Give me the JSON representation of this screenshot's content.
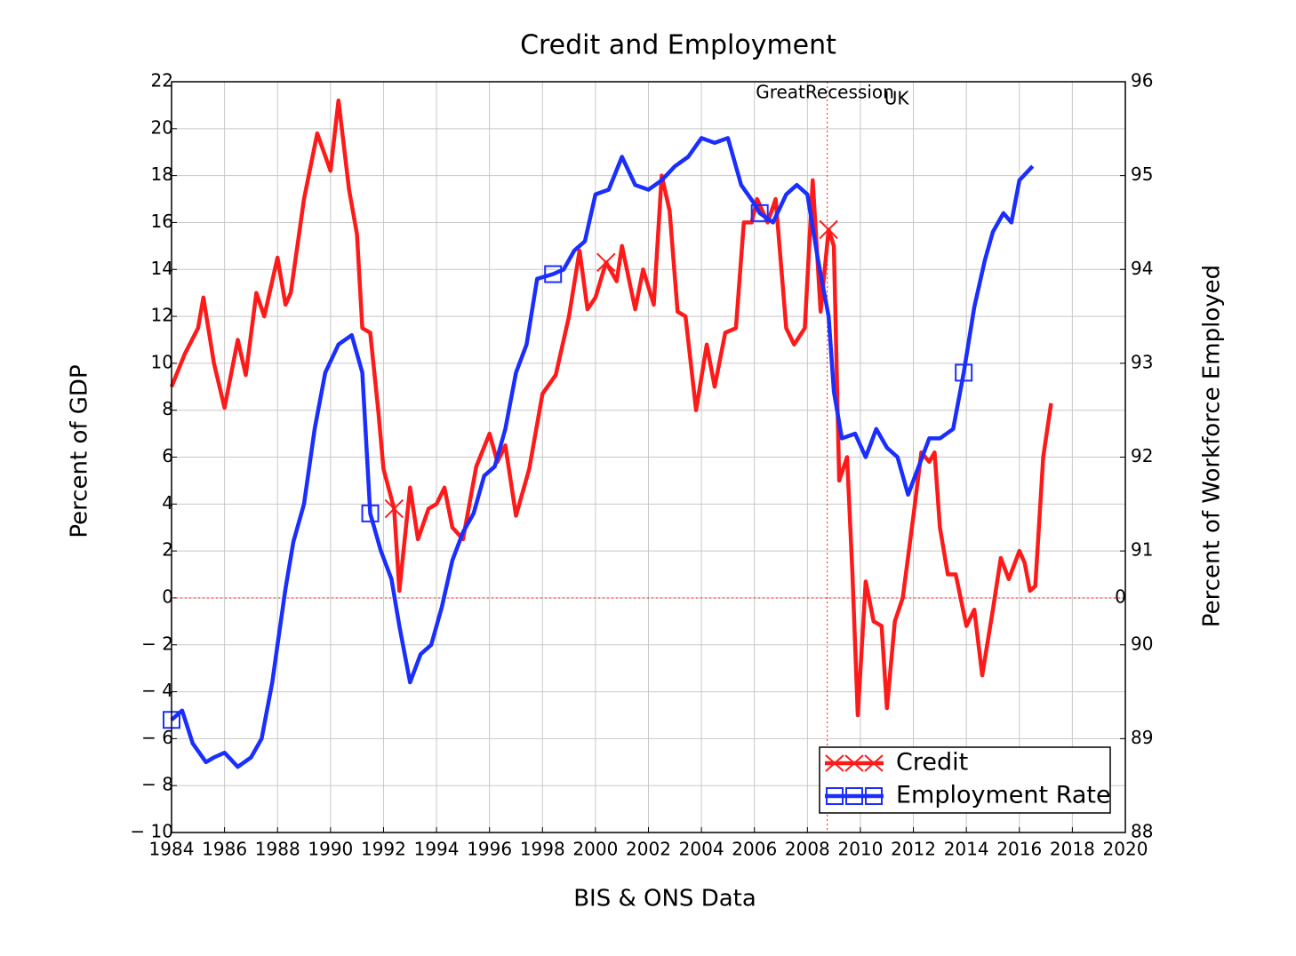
{
  "chart_data": {
    "type": "line",
    "title": "Credit and Employment",
    "xlabel": "BIS & ONS Data",
    "ylabel": "Percent of GDP",
    "y2label": "Percent of Workforce Employed",
    "xlim": [
      1984,
      2020
    ],
    "xticks": [
      1984,
      1986,
      1988,
      1990,
      1992,
      1994,
      1996,
      1998,
      2000,
      2002,
      2004,
      2006,
      2008,
      2010,
      2012,
      2014,
      2016,
      2018,
      2020
    ],
    "ylim": [
      -10,
      22
    ],
    "yticks": [
      {
        "value": -10,
        "label": "− 10"
      },
      {
        "value": -8,
        "label": "− 8"
      },
      {
        "value": -6,
        "label": "− 6"
      },
      {
        "value": -4,
        "label": "− 4"
      },
      {
        "value": -2,
        "label": "− 2"
      },
      0,
      2,
      4,
      6,
      8,
      10,
      12,
      14,
      16,
      18,
      20,
      22
    ],
    "y2lim": [
      88,
      96
    ],
    "y2ticks": [
      88,
      89,
      90,
      91,
      92,
      93,
      94,
      95,
      96
    ],
    "grid": true,
    "legend": "lower right",
    "hlines": [
      0
    ],
    "vlines": [
      2008.75
    ],
    "annotations": [
      {
        "text": "GreatRecession",
        "x": 2006.05,
        "y": 21.5
      },
      {
        "text": "UK",
        "x": 2010.9,
        "y": 21.25
      },
      {
        "text": "0",
        "x": 2019.6,
        "y": 0
      }
    ],
    "series": [
      {
        "name": "Credit",
        "color": "#ff1a1a",
        "marker": "x",
        "markevery": [
          23,
          44,
          69
        ],
        "x": [
          1984.0,
          1984.5,
          1985.0,
          1985.2,
          1985.6,
          1986.0,
          1986.5,
          1986.8,
          1987.2,
          1987.5,
          1988.0,
          1988.3,
          1988.5,
          1989.0,
          1989.5,
          1990.0,
          1990.3,
          1990.7,
          1991.0,
          1991.2,
          1991.5,
          1991.8,
          1992.0,
          1992.4,
          1992.6,
          1993.0,
          1993.3,
          1993.7,
          1994.0,
          1994.3,
          1994.6,
          1995.0,
          1995.5,
          1996.0,
          1996.3,
          1996.6,
          1997.0,
          1997.5,
          1998.0,
          1998.5,
          1999.0,
          1999.4,
          1999.7,
          2000.0,
          2000.4,
          2000.8,
          2001.0,
          2001.5,
          2001.8,
          2002.2,
          2002.5,
          2002.8,
          2003.1,
          2003.4,
          2003.8,
          2004.2,
          2004.5,
          2004.9,
          2005.3,
          2005.6,
          2005.9,
          2006.1,
          2006.5,
          2006.8,
          2007.2,
          2007.5,
          2007.9,
          2008.2,
          2008.5,
          2008.8,
          2009.0,
          2009.2,
          2009.5,
          2009.7,
          2009.9,
          2010.2,
          2010.5,
          2010.8,
          2011.0,
          2011.3,
          2011.6,
          2012.0,
          2012.3,
          2012.6,
          2012.8,
          2013.0,
          2013.3,
          2013.6,
          2014.0,
          2014.3,
          2014.6,
          2015.0,
          2015.3,
          2015.6,
          2016.0,
          2016.2,
          2016.4,
          2016.6,
          2016.9,
          2017.2
        ],
        "values": [
          9,
          10.4,
          11.5,
          12.8,
          10,
          8.1,
          11,
          9.5,
          13,
          12,
          14.5,
          12.5,
          13,
          17,
          19.8,
          18.2,
          21.2,
          17.4,
          15.5,
          11.5,
          11.3,
          8,
          5.5,
          3.8,
          0.3,
          4.7,
          2.5,
          3.8,
          4,
          4.7,
          3,
          2.5,
          5.6,
          7,
          5.8,
          6.5,
          3.5,
          5.5,
          8.7,
          9.5,
          12,
          14.8,
          12.3,
          12.8,
          14.3,
          13.5,
          15,
          12.3,
          14,
          12.5,
          18,
          16.5,
          12.2,
          12,
          8,
          10.8,
          9,
          11.3,
          11.5,
          16,
          16,
          17,
          16,
          17,
          11.5,
          10.8,
          11.5,
          17.8,
          12.2,
          15.7,
          15,
          5,
          6,
          1,
          -5,
          0.7,
          -1,
          -1.2,
          -4.7,
          -1,
          0,
          3.5,
          6.2,
          5.8,
          6.2,
          3,
          1,
          1,
          -1.2,
          -0.5,
          -3.3,
          -0.5,
          1.7,
          0.8,
          2,
          1.5,
          0.3,
          0.5,
          6,
          8.3
        ]
      },
      {
        "name": "Employment Rate",
        "color": "#1a2eff",
        "marker": "s",
        "axis": "y2",
        "markevery": [
          0,
          19,
          36,
          53,
          72
        ],
        "x": [
          1984.0,
          1984.4,
          1984.8,
          1985.3,
          1985.6,
          1986.0,
          1986.5,
          1987.0,
          1987.4,
          1987.8,
          1988.0,
          1988.3,
          1988.6,
          1989.0,
          1989.4,
          1989.8,
          1990.3,
          1990.8,
          1991.2,
          1991.5,
          1991.9,
          1992.3,
          1992.6,
          1993.0,
          1993.4,
          1993.8,
          1994.2,
          1994.6,
          1995.0,
          1995.4,
          1995.8,
          1996.2,
          1996.6,
          1997.0,
          1997.4,
          1997.8,
          1998.4,
          1998.8,
          1999.2,
          1999.6,
          2000.0,
          2000.5,
          2001.0,
          2001.5,
          2002.0,
          2002.5,
          2003.0,
          2003.5,
          2004.0,
          2004.5,
          2005.0,
          2005.5,
          2006.0,
          2006.2,
          2006.7,
          2007.2,
          2007.6,
          2008.0,
          2008.4,
          2008.8,
          2009.0,
          2009.3,
          2009.8,
          2010.2,
          2010.6,
          2011.0,
          2011.4,
          2011.8,
          2012.2,
          2012.6,
          2013.0,
          2013.5,
          2013.9,
          2014.3,
          2014.7,
          2015.0,
          2015.4,
          2015.7,
          2016.0,
          2016.5
        ],
        "values": [
          89.2,
          89.3,
          88.95,
          88.75,
          88.8,
          88.85,
          88.7,
          88.8,
          89.0,
          89.6,
          90.0,
          90.6,
          91.1,
          91.5,
          92.3,
          92.9,
          93.2,
          93.3,
          92.9,
          91.4,
          91.0,
          90.7,
          90.2,
          89.6,
          89.9,
          90.0,
          90.4,
          90.9,
          91.2,
          91.4,
          91.8,
          91.9,
          92.3,
          92.9,
          93.2,
          93.9,
          93.95,
          94.0,
          94.2,
          94.3,
          94.8,
          94.85,
          95.2,
          94.9,
          94.85,
          94.95,
          95.1,
          95.2,
          95.4,
          95.35,
          95.4,
          94.9,
          94.7,
          94.6,
          94.5,
          94.8,
          94.9,
          94.8,
          94.1,
          93.5,
          92.7,
          92.2,
          92.25,
          92.0,
          92.3,
          92.1,
          92.0,
          91.6,
          91.9,
          92.2,
          92.2,
          92.3,
          92.9,
          93.6,
          94.1,
          94.4,
          94.6,
          94.5,
          94.95,
          95.1
        ]
      }
    ]
  }
}
